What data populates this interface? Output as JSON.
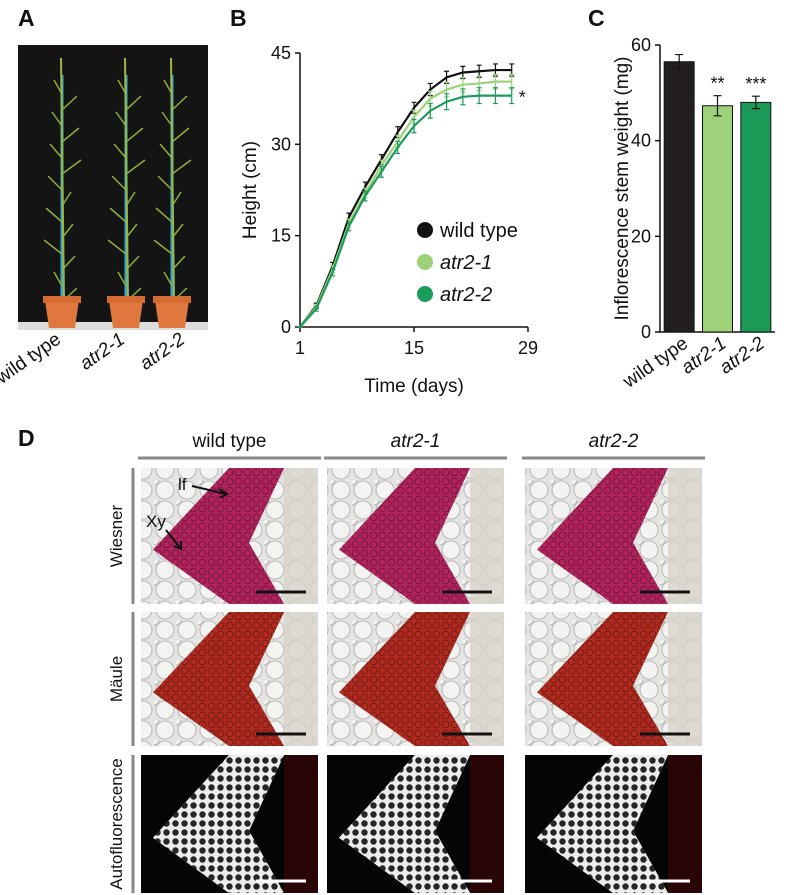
{
  "panel_labels": [
    "A",
    "B",
    "C",
    "D"
  ],
  "panel_a": {
    "labels": [
      "wild type",
      "atr2-1",
      "atr2-2"
    ]
  },
  "chart_data": [
    {
      "type": "line",
      "xlabel": "Time (days)",
      "ylabel": "Height (cm)",
      "x": [
        1,
        3,
        5,
        7,
        9,
        11,
        13,
        15,
        17,
        19,
        21,
        23,
        25,
        27
      ],
      "xlim": [
        1,
        29
      ],
      "xticks": [
        1,
        15,
        29
      ],
      "ylim": [
        0,
        45
      ],
      "yticks": [
        0,
        15,
        30,
        45
      ],
      "series": [
        {
          "name": "wild type",
          "color": "#111111",
          "values": [
            0,
            3.5,
            10,
            18,
            23,
            27.5,
            32,
            36,
            39,
            41,
            41.8,
            42,
            42.2,
            42.2
          ],
          "errors": [
            0,
            0.4,
            0.6,
            0.7,
            0.8,
            0.8,
            0.9,
            0.9,
            1,
            1,
            1,
            1,
            1,
            1
          ]
        },
        {
          "name": "atr2-1",
          "color": "#9dd27a",
          "values": [
            0,
            3.3,
            9.5,
            17,
            22,
            26.5,
            30.5,
            34.5,
            37.5,
            39,
            39.8,
            40,
            40.3,
            40.3
          ],
          "errors": [
            0,
            0.4,
            0.6,
            0.7,
            0.8,
            0.9,
            1,
            1.1,
            1.2,
            1.2,
            1.2,
            1.2,
            1.2,
            1.2
          ]
        },
        {
          "name": "atr2-2",
          "color": "#1a9c5a",
          "values": [
            0,
            3,
            9,
            16.5,
            21.5,
            25.5,
            29.5,
            33,
            35.5,
            37,
            37.8,
            38,
            38,
            38
          ],
          "errors": [
            0,
            0.4,
            0.6,
            0.7,
            0.8,
            0.9,
            1,
            1.1,
            1.2,
            1.3,
            1.3,
            1.3,
            1.3,
            1.3
          ]
        }
      ],
      "annotations": [
        {
          "series": 2,
          "text": "*"
        }
      ]
    },
    {
      "type": "bar",
      "ylabel": "Inflorescence stem weight (mg)",
      "categories": [
        "wild type",
        "atr2-1",
        "atr2-2"
      ],
      "values": [
        56.5,
        47.3,
        48
      ],
      "errors": [
        1.5,
        2.1,
        1.3
      ],
      "colors": [
        "#231f20",
        "#9dd27a",
        "#1b9a57"
      ],
      "ylim": [
        0,
        60
      ],
      "yticks": [
        0,
        20,
        40,
        60
      ],
      "annotations": [
        {
          "index": 1,
          "text": "**"
        },
        {
          "index": 2,
          "text": "***"
        }
      ]
    }
  ],
  "panel_d": {
    "columns": [
      "wild type",
      "atr2-1",
      "atr2-2"
    ],
    "rows": [
      "Wiesner",
      "Mäule",
      "Autofluorescence"
    ],
    "annotations": [
      "Xy",
      "lf"
    ]
  }
}
